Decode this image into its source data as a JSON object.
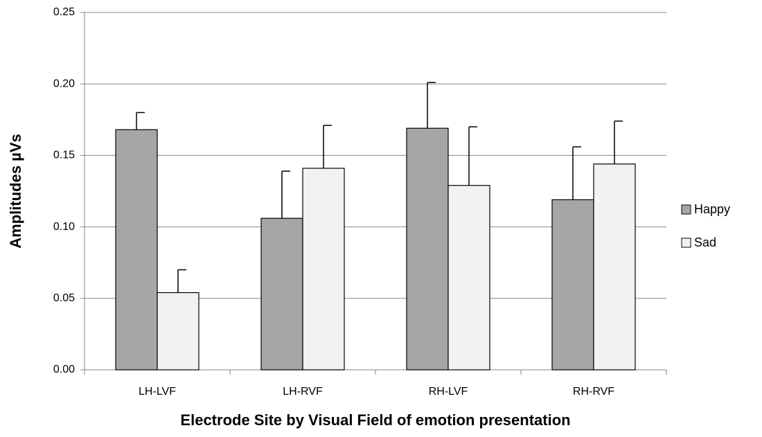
{
  "chart_data": {
    "type": "bar",
    "x_label": "Electrode Site by Visual Field of emotion presentation",
    "y_label": "Amplitudes µVs",
    "categories": [
      "LH-LVF",
      "LH-RVF",
      "RH-LVF",
      "RH-RVF"
    ],
    "series": [
      {
        "name": "Happy",
        "color": "#a6a6a6",
        "values": [
          0.168,
          0.106,
          0.169,
          0.119
        ],
        "errors": [
          0.012,
          0.033,
          0.032,
          0.037
        ]
      },
      {
        "name": "Sad",
        "color": "#f2f2f2",
        "values": [
          0.054,
          0.141,
          0.129,
          0.144
        ],
        "errors": [
          0.016,
          0.03,
          0.041,
          0.03
        ]
      }
    ],
    "ylim": [
      0,
      0.25
    ],
    "yticks": [
      {
        "value": 0,
        "label": "0.00"
      },
      {
        "value": 0.05,
        "label": "0.05"
      },
      {
        "value": 0.1,
        "label": "0.10"
      },
      {
        "value": 0.15,
        "label": "0.15"
      },
      {
        "value": 0.2,
        "label": "0.20"
      },
      {
        "value": 0.25,
        "label": "0.25"
      }
    ],
    "grid": true,
    "legend": "right"
  }
}
